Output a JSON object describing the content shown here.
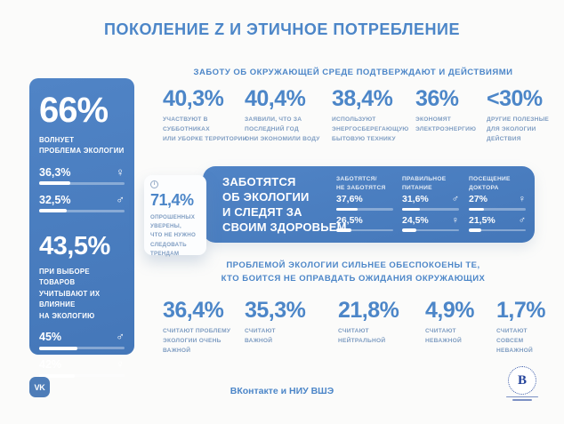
{
  "title": "ПОКОЛЕНИЕ Z И ЭТИЧНОЕ ПОТРЕБЛЕНИЕ",
  "colors": {
    "panel_blue": "#4a7dbf",
    "accent_blue": "#4c86c8",
    "muted_label_blue": "#7f9dc2",
    "hse_navy": "#24439b",
    "background": "#fbfbfa",
    "bar_fill": "#ffffff"
  },
  "icons": {
    "female": "♀",
    "male": "♂",
    "info": "i"
  },
  "left_panel": {
    "eco_concern": {
      "value": "66%",
      "label": "ВОЛНУЕТ\nПРОБЛЕМА ЭКОЛОГИИ",
      "bars": [
        {
          "value": "36,3%",
          "icon": "♀",
          "fill": "36.3%"
        },
        {
          "value": "32,5%",
          "icon": "♂",
          "fill": "32.5%"
        }
      ]
    },
    "product_choice": {
      "value": "43,5%",
      "label": "ПРИ ВЫБОРЕ ТОВАРОВ\nУЧИТЫВАЮТ ИХ ВЛИЯНИЕ\nНА ЭКОЛОГИЮ",
      "bars": [
        {
          "value": "45%",
          "icon": "♂",
          "fill": "45%"
        },
        {
          "value": "42%",
          "icon": "♀",
          "fill": "42%"
        }
      ]
    }
  },
  "actions_section": {
    "heading": "ЗАБОТУ ОБ ОКРУЖАЮЩЕЙ СРЕДЕ ПОДТВЕРЖДАЮТ И ДЕЙСТВИЯМИ",
    "stats": [
      {
        "value": "40,3%",
        "label": "УЧАСТВУЮТ В СУББОТНИКАХ\nИЛИ УБОРКЕ ТЕРРИТОРИИ"
      },
      {
        "value": "40,4%",
        "label": "ЗАЯВИЛИ, ЧТО ЗА\nПОСЛЕДНИЙ ГОД\nОНИ ЭКОНОМИЛИ ВОДУ"
      },
      {
        "value": "38,4%",
        "label": "ИСПОЛЬЗУЮТ\nЭНЕРГОСБЕРЕГАЮЩУЮ\nБЫТОВУЮ ТЕХНИКУ"
      },
      {
        "value": "36%",
        "label": "ЭКОНОМЯТ\nЭЛЕКТРОЭНЕРГИЮ"
      },
      {
        "value": "<30%",
        "label": "ДРУГИЕ ПОЛЕЗНЫЕ\nДЛЯ ЭКОЛОГИИ\nДЕЙСТВИЯ"
      }
    ]
  },
  "health_section": {
    "trend_card": {
      "value": "71,4%",
      "label": "ОПРОШЕННЫХ\nУВЕРЕНЫ,\nЧТО НЕ НУЖНО\nСЛЕДОВАТЬ\nТРЕНДАМ"
    },
    "box_title": "ЗАБОТЯТСЯ\nОБ ЭКОЛОГИИ\nИ СЛЕДЯТ ЗА\nСВОИМ ЗДОРОВЬЕМ",
    "columns": [
      {
        "header": "ЗАБОТЯТСЯ/\nНЕ ЗАБОТЯТСЯ",
        "rows": [
          {
            "value": "37,6%",
            "icon": "",
            "fill": "37.6%"
          },
          {
            "value": "26,5%",
            "icon": "",
            "fill": "26.5%"
          }
        ]
      },
      {
        "header": "ПРАВИЛЬНОЕ\nПИТАНИЕ",
        "rows": [
          {
            "value": "31,6%",
            "icon": "♂",
            "fill": "31.6%"
          },
          {
            "value": "24,5%",
            "icon": "♀",
            "fill": "24.5%"
          }
        ]
      },
      {
        "header": "ПОСЕЩЕНИЕ\nДОКТОРА",
        "rows": [
          {
            "value": "27%",
            "icon": "♀",
            "fill": "27%"
          },
          {
            "value": "21,5%",
            "icon": "♂",
            "fill": "21.5%"
          }
        ]
      }
    ]
  },
  "importance_section": {
    "heading": "ПРОБЛЕМОЙ ЭКОЛОГИИ СИЛЬНЕЕ ОБЕСПОКОЕНЫ ТЕ,\nКТО БОИТСЯ НЕ ОПРАВДАТЬ ОЖИДАНИЯ ОКРУЖАЮЩИХ",
    "stats": [
      {
        "value": "36,4%",
        "label": "СЧИТАЮТ ПРОБЛЕМУ\nЭКОЛОГИИ ОЧЕНЬ\nВАЖНОЙ"
      },
      {
        "value": "35,3%",
        "label": "СЧИТАЮТ\nВАЖНОЙ"
      },
      {
        "value": "21,8%",
        "label": "СЧИТАЮТ\nНЕЙТРАЛЬНОЙ"
      },
      {
        "value": "4,9%",
        "label": "СЧИТАЮТ\nНЕВАЖНОЙ"
      },
      {
        "value": "1,7%",
        "label": "СЧИТАЮТ\nСОВСЕМ\nНЕВАЖНОЙ"
      }
    ]
  },
  "footer": {
    "credit": "ВКонтакте и НИУ ВШЭ",
    "vk_logo_text": "VK",
    "hse_logo_letter": "В"
  },
  "chart_data": [
    {
      "type": "bar",
      "title": "ВОЛНУЕТ ПРОБЛЕМА ЭКОЛОГИИ",
      "overall_pct": 66,
      "categories": [
        "♀",
        "♂"
      ],
      "values": [
        36.3,
        32.5
      ],
      "value_labels": [
        "36,3%",
        "32,5%"
      ],
      "ylim": [
        0,
        100
      ]
    },
    {
      "type": "bar",
      "title": "ПРИ ВЫБОРЕ ТОВАРОВ УЧИТЫВАЮТ ИХ ВЛИЯНИЕ НА ЭКОЛОГИЮ",
      "overall_pct": 43.5,
      "categories": [
        "♂",
        "♀"
      ],
      "values": [
        45,
        42
      ],
      "value_labels": [
        "45%",
        "42%"
      ],
      "ylim": [
        0,
        100
      ]
    },
    {
      "type": "bar",
      "title": "ЗАБОТУ ОБ ОКРУЖАЮЩЕЙ СРЕДЕ ПОДТВЕРЖДАЮТ И ДЕЙСТВИЯМИ",
      "categories": [
        "УЧАСТВУЮТ В СУББОТНИКАХ ИЛИ УБОРКЕ ТЕРРИТОРИИ",
        "ЗАЯВИЛИ, ЧТО ЗА ПОСЛЕДНИЙ ГОД ОНИ ЭКОНОМИЛИ ВОДУ",
        "ИСПОЛЬЗУЮТ ЭНЕРГОСБЕРЕГАЮЩУЮ БЫТОВУЮ ТЕХНИКУ",
        "ЭКОНОМЯТ ЭЛЕКТРОЭНЕРГИЮ",
        "ДРУГИЕ ПОЛЕЗНЫЕ ДЛЯ ЭКОЛОГИИ ДЕЙСТВИЯ"
      ],
      "values": [
        40.3,
        40.4,
        38.4,
        36,
        30
      ],
      "value_labels": [
        "40,3%",
        "40,4%",
        "38,4%",
        "36%",
        "<30%"
      ],
      "ylim": [
        0,
        100
      ]
    },
    {
      "type": "bar",
      "title": "ЗАБОТЯТСЯ ОБ ЭКОЛОГИИ И СЛЕДЯТ ЗА СВОИМ ЗДОРОВЬЕМ",
      "annotation": {
        "pct": 71.4,
        "label": "ОПРОШЕННЫХ УВЕРЕНЫ, ЧТО НЕ НУЖНО СЛЕДОВАТЬ ТРЕНДАМ"
      },
      "rows": [
        {
          "category": "ЗАБОТЯТСЯ/НЕ ЗАБОТЯТСЯ",
          "values": [
            {
              "label": "",
              "pct": 37.6
            },
            {
              "label": "",
              "pct": 26.5
            }
          ]
        },
        {
          "category": "ПРАВИЛЬНОЕ ПИТАНИЕ",
          "values": [
            {
              "label": "♂",
              "pct": 31.6
            },
            {
              "label": "♀",
              "pct": 24.5
            }
          ]
        },
        {
          "category": "ПОСЕЩЕНИЕ ДОКТОРА",
          "values": [
            {
              "label": "♀",
              "pct": 27
            },
            {
              "label": "♂",
              "pct": 21.5
            }
          ]
        }
      ],
      "ylim": [
        0,
        100
      ]
    },
    {
      "type": "bar",
      "title": "ПРОБЛЕМОЙ ЭКОЛОГИИ СИЛЬНЕЕ ОБЕСПОКОЕНЫ ТЕ, КТО БОИТСЯ НЕ ОПРАВДАТЬ ОЖИДАНИЯ ОКРУЖАЮЩИХ",
      "categories": [
        "СЧИТАЮТ ПРОБЛЕМУ ЭКОЛОГИИ ОЧЕНЬ ВАЖНОЙ",
        "СЧИТАЮТ ВАЖНОЙ",
        "СЧИТАЮТ НЕЙТРАЛЬНОЙ",
        "СЧИТАЮТ НЕВАЖНОЙ",
        "СЧИТАЮТ СОВСЕМ НЕВАЖНОЙ"
      ],
      "values": [
        36.4,
        35.3,
        21.8,
        4.9,
        1.7
      ],
      "value_labels": [
        "36,4%",
        "35,3%",
        "21,8%",
        "4,9%",
        "1,7%"
      ],
      "ylim": [
        0,
        100
      ]
    }
  ]
}
